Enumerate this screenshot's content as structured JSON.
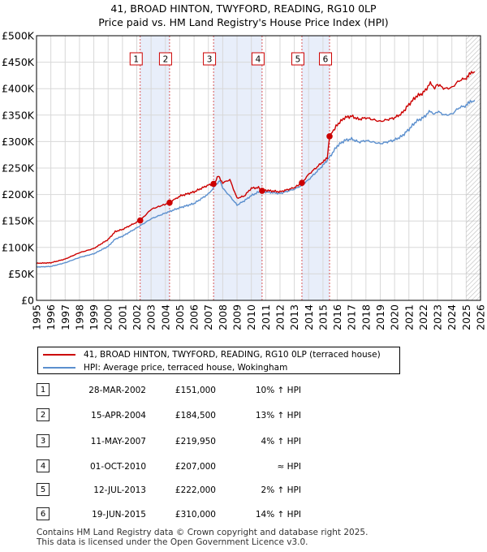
{
  "title": {
    "line1": "41, BROAD HINTON, TWYFORD, READING, RG10 0LP",
    "line2": "Price paid vs. HM Land Registry's House Price Index (HPI)"
  },
  "colors": {
    "property": "#cc0000",
    "hpi": "#5b8fce",
    "band": "#e8eefa",
    "marker_line": "#cc0000"
  },
  "chart_data": {
    "type": "line",
    "title": "41, BROAD HINTON, TWYFORD, READING, RG10 0LP — Price paid vs. HM Land Registry's House Price Index (HPI)",
    "xlim": [
      1995,
      2026
    ],
    "ylim": [
      0,
      500000
    ],
    "x_ticks": [
      1995,
      1996,
      1997,
      1998,
      1999,
      2000,
      2001,
      2002,
      2003,
      2004,
      2005,
      2006,
      2007,
      2008,
      2009,
      2010,
      2011,
      2012,
      2013,
      2014,
      2015,
      2016,
      2017,
      2018,
      2019,
      2020,
      2021,
      2022,
      2023,
      2024,
      2025,
      2026
    ],
    "y_ticks": [
      0,
      50000,
      100000,
      150000,
      200000,
      250000,
      300000,
      350000,
      400000,
      450000,
      500000
    ],
    "y_tick_labels": [
      "£0",
      "£50K",
      "£100K",
      "£150K",
      "£200K",
      "£250K",
      "£300K",
      "£350K",
      "£400K",
      "£450K",
      "£500K"
    ],
    "grid": true,
    "shaded_ranges": [
      [
        2002.24,
        2004.29
      ],
      [
        2007.36,
        2010.75
      ],
      [
        2013.53,
        2015.46
      ]
    ],
    "hatched_after": 2025.0,
    "series": [
      {
        "name": "41, BROAD HINTON, TWYFORD, READING, RG10 0LP (terraced house)",
        "color": "#cc0000",
        "x": [
          1995,
          1996,
          1997,
          1998,
          1999,
          2000,
          2000.5,
          2001,
          2002.24,
          2003,
          2004.29,
          2005,
          2006,
          2007,
          2007.36,
          2007.7,
          2008,
          2008.5,
          2009,
          2009.5,
          2010,
          2010.5,
          2010.75,
          2011,
          2012,
          2013,
          2013.53,
          2014,
          2015,
          2015.3,
          2015.46,
          2016,
          2016.5,
          2017,
          2017.5,
          2018,
          2019,
          2020,
          2020.5,
          2021,
          2021.5,
          2022,
          2022.5,
          2022.8,
          2023,
          2023.5,
          2024,
          2024.5,
          2025,
          2025.3,
          2025.6
        ],
        "values": [
          70000,
          71000,
          78000,
          90000,
          98000,
          115000,
          130000,
          134000,
          151000,
          172000,
          184500,
          197000,
          205000,
          218000,
          219950,
          235000,
          222000,
          228000,
          193000,
          197000,
          212000,
          213000,
          207000,
          208000,
          205000,
          213000,
          222000,
          238000,
          262000,
          268000,
          310000,
          332000,
          345000,
          348000,
          342000,
          345000,
          338000,
          345000,
          353000,
          370000,
          385000,
          392000,
          410000,
          402000,
          408000,
          400000,
          402000,
          415000,
          420000,
          428000,
          432000
        ]
      },
      {
        "name": "HPI: Average price, terraced house, Wokingham",
        "color": "#5b8fce",
        "x": [
          1995,
          1996,
          1997,
          1998,
          1999,
          2000,
          2000.5,
          2001,
          2002,
          2003,
          2004,
          2005,
          2006,
          2007,
          2007.8,
          2008,
          2008.5,
          2009,
          2009.5,
          2010,
          2010.75,
          2011,
          2012,
          2013,
          2013.5,
          2014,
          2015,
          2015.5,
          2016,
          2016.5,
          2017,
          2017.5,
          2018,
          2019,
          2020,
          2020.5,
          2021,
          2021.5,
          2022,
          2022.5,
          2022.8,
          2023,
          2023.5,
          2024,
          2024.5,
          2025,
          2025.3,
          2025.6
        ],
        "values": [
          63000,
          64000,
          71000,
          81000,
          88000,
          102000,
          116000,
          121000,
          137000,
          154000,
          165000,
          175000,
          183000,
          201000,
          227000,
          212000,
          197000,
          180000,
          188000,
          198000,
          208000,
          205000,
          202000,
          210000,
          217000,
          228000,
          255000,
          272000,
          292000,
          302000,
          305000,
          299000,
          302000,
          296000,
          303000,
          310000,
          323000,
          338000,
          345000,
          358000,
          352000,
          357000,
          350000,
          352000,
          364000,
          368000,
          375000,
          378000
        ]
      }
    ],
    "sales": [
      {
        "num": "1",
        "x": 2002.24,
        "price": 151000
      },
      {
        "num": "2",
        "x": 2004.29,
        "price": 184500
      },
      {
        "num": "3",
        "x": 2007.36,
        "price": 219950
      },
      {
        "num": "4",
        "x": 2010.75,
        "price": 207000
      },
      {
        "num": "5",
        "x": 2013.53,
        "price": 222000
      },
      {
        "num": "6",
        "x": 2015.46,
        "price": 310000
      }
    ]
  },
  "legend": {
    "property": "41, BROAD HINTON, TWYFORD, READING, RG10 0LP (terraced house)",
    "hpi": "HPI: Average price, terraced house, Wokingham"
  },
  "sales_table": [
    {
      "num": "1",
      "date": "28-MAR-2002",
      "price": "£151,000",
      "hpi": "10% ↑ HPI"
    },
    {
      "num": "2",
      "date": "15-APR-2004",
      "price": "£184,500",
      "hpi": "13% ↑ HPI"
    },
    {
      "num": "3",
      "date": "11-MAY-2007",
      "price": "£219,950",
      "hpi": "4% ↑ HPI"
    },
    {
      "num": "4",
      "date": "01-OCT-2010",
      "price": "£207,000",
      "hpi": "≈ HPI"
    },
    {
      "num": "5",
      "date": "12-JUL-2013",
      "price": "£222,000",
      "hpi": "2% ↑ HPI"
    },
    {
      "num": "6",
      "date": "19-JUN-2015",
      "price": "£310,000",
      "hpi": "14% ↑ HPI"
    }
  ],
  "footer": {
    "line1": "Contains HM Land Registry data © Crown copyright and database right 2025.",
    "line2": "This data is licensed under the Open Government Licence v3.0."
  }
}
